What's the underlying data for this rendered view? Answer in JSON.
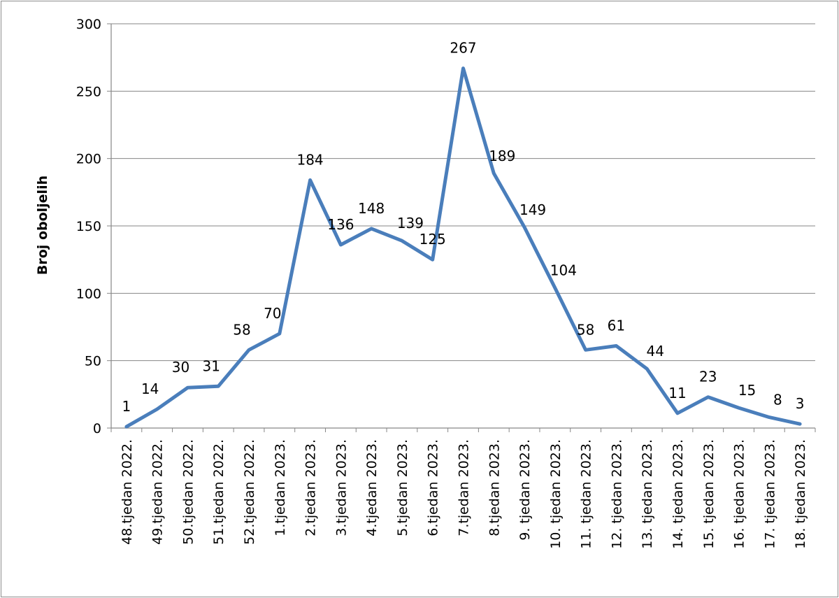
{
  "chart_data": {
    "type": "line",
    "ylabel": "Broj oboljelih",
    "xlabel": "",
    "ylim": [
      0,
      300
    ],
    "yticks": [
      0,
      50,
      100,
      150,
      200,
      250,
      300
    ],
    "grid": true,
    "legend": "none",
    "line_color": "#4a7ebb",
    "categories": [
      "48.tjedan 2022.",
      "49.tjedan 2022.",
      "50.tjedan 2022.",
      "51.tjedan 2022.",
      "52.tjedan 2022.",
      "1.tjedan 2023.",
      "2.tjedan 2023.",
      "3.tjedan 2023.",
      "4.tjedan 2023.",
      "5.tjedan 2023.",
      "6.tjedan 2023.",
      "7.tjedan 2023.",
      "8.tjedan 2023.",
      "9. tjedan 2023.",
      "10. tjedan 2023.",
      "11. tjedan 2023.",
      "12. tjedan 2023.",
      "13. tjedan 2023.",
      "14. tjedan 2023.",
      "15. tjedan 2023.",
      "16. tjedan 2023.",
      "17. tjedan 2023.",
      "18. tjedan 2023."
    ],
    "series": [
      {
        "values": [
          1,
          14,
          30,
          31,
          58,
          70,
          184,
          136,
          148,
          139,
          125,
          267,
          189,
          149,
          104,
          58,
          61,
          44,
          11,
          23,
          15,
          8,
          3
        ]
      }
    ]
  }
}
